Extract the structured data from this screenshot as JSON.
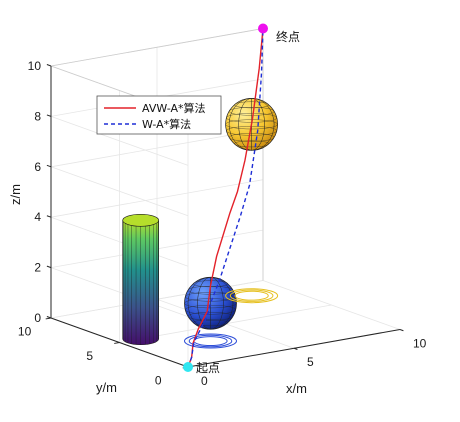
{
  "chart_data": {
    "type": "line",
    "title": "",
    "xlabel": "x/m",
    "ylabel": "y/m",
    "zlabel": "z/m",
    "xlim": [
      0,
      10
    ],
    "ylim": [
      0,
      10
    ],
    "zlim": [
      0,
      10
    ],
    "x_ticks": [
      "0",
      "5",
      "10"
    ],
    "y_ticks": [
      "0",
      "5",
      "10"
    ],
    "z_ticks": [
      "0",
      "2",
      "4",
      "6",
      "8",
      "10"
    ],
    "grid": true,
    "legend_position": "upper-left",
    "start_label": "起点",
    "end_label": "终点",
    "start_point": [
      0,
      0,
      0
    ],
    "end_point": [
      10,
      10,
      10
    ],
    "series": [
      {
        "name": "AVW-A*算法",
        "color": "#e3222a",
        "dash": "solid",
        "points": [
          [
            0,
            0,
            0
          ],
          [
            0.3,
            0.2,
            0.3
          ],
          [
            0.5,
            0.4,
            0.8
          ],
          [
            1.0,
            0.8,
            1.2
          ],
          [
            2.2,
            2.0,
            1.5
          ],
          [
            3.0,
            3.0,
            2.2
          ],
          [
            4.0,
            4.1,
            3.0
          ],
          [
            5.6,
            5.6,
            4.2
          ],
          [
            6.6,
            6.6,
            4.7
          ],
          [
            7.6,
            7.6,
            5.6
          ],
          [
            8.6,
            8.6,
            6.9
          ],
          [
            9.5,
            9.5,
            8.6
          ],
          [
            10,
            10,
            10
          ]
        ]
      },
      {
        "name": "W-A*算法",
        "color": "#1f2fd6",
        "dash": "dashed",
        "points": [
          [
            0,
            0,
            0
          ],
          [
            0.3,
            0.2,
            0.3
          ],
          [
            0.6,
            0.5,
            0.8
          ],
          [
            2.2,
            2.0,
            1.3
          ],
          [
            3.0,
            3.0,
            1.5
          ],
          [
            4.2,
            4.2,
            2.0
          ],
          [
            5.6,
            5.6,
            2.8
          ],
          [
            7.0,
            7.0,
            3.6
          ],
          [
            8.2,
            8.2,
            4.4
          ],
          [
            9.3,
            9.3,
            6.2
          ],
          [
            9.8,
            9.8,
            8.3
          ],
          [
            10,
            10,
            10
          ]
        ]
      }
    ],
    "obstacles": [
      {
        "kind": "cylinder",
        "center": [
          1,
          5
        ],
        "radius": 1,
        "z_range": [
          0,
          4.7
        ],
        "colormap": "viridis"
      },
      {
        "kind": "sphere",
        "center": [
          3.0,
          3.0,
          1.5
        ],
        "radius": 1.0,
        "color": "#2f4fd8"
      },
      {
        "kind": "sphere",
        "center": [
          8.3,
          8.2,
          6.8
        ],
        "radius": 1.0,
        "color": "#f5c83a"
      }
    ],
    "contour_rings": [
      {
        "center": [
          3.0,
          3.0
        ],
        "color": "#2f4fd8"
      },
      {
        "center": [
          8.3,
          8.2
        ],
        "color": "#e6c020"
      }
    ],
    "colors": {
      "axis": "#262626",
      "grid": "#e6e6e6",
      "marker_start": "#30e6f0",
      "marker_end": "#ee10ee"
    }
  }
}
